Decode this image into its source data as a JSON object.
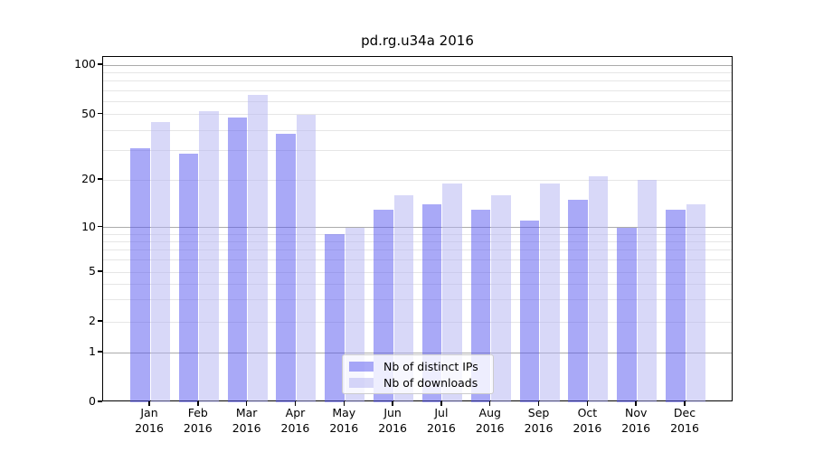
{
  "figure": {
    "title": "pd.rg.u34a 2016"
  },
  "chart_data": {
    "type": "bar",
    "title": "pd.rg.u34a 2016",
    "categories": [
      "Jan",
      "Feb",
      "Mar",
      "Apr",
      "May",
      "Jun",
      "Jul",
      "Aug",
      "Sep",
      "Oct",
      "Nov",
      "Dec"
    ],
    "category_year": "2016",
    "series": [
      {
        "name": "Nb of distinct IPs",
        "color": "rgba(84,84,240,0.5)",
        "values": [
          31,
          29,
          48,
          38,
          9,
          13,
          14,
          13,
          11,
          15,
          10,
          13
        ]
      },
      {
        "name": "Nb of downloads",
        "color": "rgba(177,177,241,0.5)",
        "values": [
          45,
          52,
          66,
          50,
          10,
          16,
          19,
          16,
          19,
          21,
          20,
          14
        ]
      }
    ],
    "yscale": "log-like (linear below 1, compressed log above)",
    "yticks": [
      0,
      1,
      2,
      5,
      10,
      20,
      50,
      100
    ],
    "ylim": [
      0,
      115
    ],
    "xlabel": "",
    "ylabel": "",
    "grid": true,
    "legend_position": "lower-center"
  },
  "colors": {
    "major_grid": "#ababab",
    "minor_grid": "#e6e6e6",
    "axis": "#000000",
    "legend_border": "#cccccc",
    "legend_background": "rgba(255,255,255,0.8)"
  }
}
